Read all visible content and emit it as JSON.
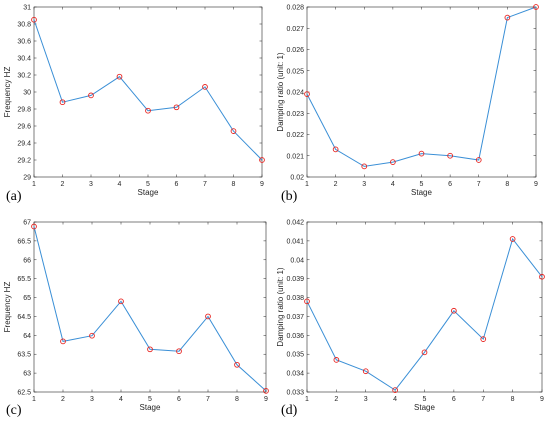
{
  "colors": {
    "line": "#3a8fd6",
    "marker": "#e8231f",
    "axis": "#262626"
  },
  "chart_data": [
    {
      "panel_label": "(a)",
      "type": "line",
      "x": [
        1,
        2,
        3,
        4,
        5,
        6,
        7,
        8,
        9
      ],
      "y": [
        30.85,
        29.88,
        29.96,
        30.18,
        29.78,
        29.82,
        30.06,
        29.54,
        29.2
      ],
      "xlabel": "Stage",
      "ylabel": "Frequency  HZ",
      "xlim": [
        1,
        9
      ],
      "ylim": [
        29,
        31
      ],
      "xticks": [
        "1",
        "2",
        "3",
        "4",
        "5",
        "6",
        "7",
        "8",
        "9"
      ],
      "yticks": [
        "29",
        "29.2",
        "29.4",
        "29.6",
        "29.8",
        "30",
        "30.2",
        "30.4",
        "30.6",
        "30.8",
        "31"
      ],
      "grid": false
    },
    {
      "panel_label": "(b)",
      "type": "line",
      "x": [
        1,
        2,
        3,
        4,
        5,
        6,
        7,
        8,
        9
      ],
      "y": [
        0.0239,
        0.0213,
        0.0205,
        0.0207,
        0.0211,
        0.021,
        0.0208,
        0.0275,
        0.028
      ],
      "xlabel": "Stage",
      "ylabel": "Damping ratio (unit: 1)",
      "xlim": [
        1,
        9
      ],
      "ylim": [
        0.02,
        0.028
      ],
      "xticks": [
        "1",
        "2",
        "3",
        "4",
        "5",
        "6",
        "7",
        "8",
        "9"
      ],
      "yticks": [
        "0.02",
        "0.021",
        "0.022",
        "0.023",
        "0.024",
        "0.025",
        "0.026",
        "0.027",
        "0.028"
      ],
      "grid": false
    },
    {
      "panel_label": "(c)",
      "type": "line",
      "x": [
        1,
        2,
        3,
        4,
        5,
        6,
        7,
        8,
        9
      ],
      "y": [
        66.88,
        63.84,
        63.99,
        64.9,
        63.63,
        63.58,
        64.5,
        63.22,
        62.53
      ],
      "xlabel": "Stage",
      "ylabel": "Frequency  HZ",
      "xlim": [
        1,
        9
      ],
      "ylim": [
        62.5,
        67
      ],
      "xticks": [
        "1",
        "2",
        "3",
        "4",
        "5",
        "6",
        "7",
        "8",
        "9"
      ],
      "yticks": [
        "62.5",
        "63",
        "63.5",
        "64",
        "64.5",
        "65",
        "65.5",
        "66",
        "66.5",
        "67"
      ],
      "grid": false
    },
    {
      "panel_label": "(d)",
      "type": "line",
      "x": [
        1,
        2,
        3,
        4,
        5,
        6,
        7,
        8,
        9
      ],
      "y": [
        0.0378,
        0.0347,
        0.0341,
        0.0331,
        0.0351,
        0.0373,
        0.0358,
        0.0411,
        0.0391
      ],
      "xlabel": "Stage",
      "ylabel": "Damping ratio (unit: 1)",
      "xlim": [
        1,
        9
      ],
      "ylim": [
        0.033,
        0.042
      ],
      "xticks": [
        "1",
        "2",
        "3",
        "4",
        "5",
        "6",
        "7",
        "8",
        "9"
      ],
      "yticks": [
        "0.033",
        "0.034",
        "0.035",
        "0.036",
        "0.037",
        "0.038",
        "0.039",
        "0.04",
        "0.041",
        "0.042"
      ],
      "grid": false
    }
  ]
}
